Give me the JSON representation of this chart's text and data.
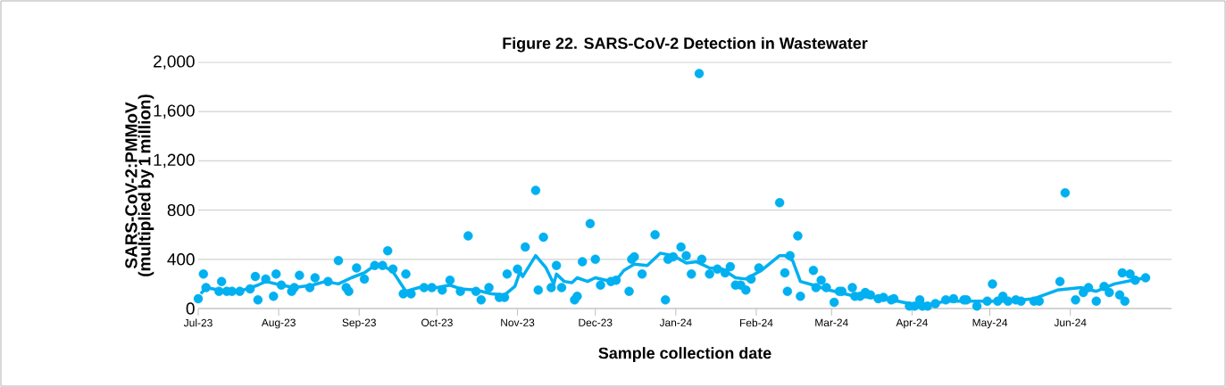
{
  "chart_data": {
    "type": "scatter",
    "title": "Figure 22. SARS-CoV-2 Detection in Wastewater",
    "xlabel": "Sample collection date",
    "ylabel": "SARS-CoV-2:PMMoV (multiplied by 1 million)",
    "xlim": [
      "2023-07-01",
      "2024-07-10"
    ],
    "ylim": [
      0,
      2000
    ],
    "xticks": [
      {
        "value": "2023-07-01",
        "label": "Jul-23"
      },
      {
        "value": "2023-08-01",
        "label": "Aug-23"
      },
      {
        "value": "2023-09-01",
        "label": "Sep-23"
      },
      {
        "value": "2023-10-01",
        "label": "Oct-23"
      },
      {
        "value": "2023-11-01",
        "label": "Nov-23"
      },
      {
        "value": "2023-12-01",
        "label": "Dec-23"
      },
      {
        "value": "2024-01-01",
        "label": "Jan-24"
      },
      {
        "value": "2024-02-01",
        "label": "Feb-24"
      },
      {
        "value": "2024-03-01",
        "label": "Mar-24"
      },
      {
        "value": "2024-04-01",
        "label": "Apr-24"
      },
      {
        "value": "2024-05-01",
        "label": "May-24"
      },
      {
        "value": "2024-06-01",
        "label": "Jun-24"
      }
    ],
    "yticks": [
      0,
      {
        "value": 400,
        "label": "400"
      },
      {
        "value": 800,
        "label": "800"
      },
      {
        "value": 1200,
        "label": "1,200"
      },
      {
        "value": 1600,
        "label": "1,600"
      },
      {
        "value": 2000,
        "label": "2,000"
      }
    ],
    "grid": "y",
    "series": [
      {
        "marker": "circle",
        "color": "#00b0f0",
        "x": [
          "2023-07-01",
          "2023-07-03",
          "2023-07-04",
          "2023-07-09",
          "2023-07-10",
          "2023-07-12",
          "2023-07-14",
          "2023-07-17",
          "2023-07-21",
          "2023-07-23",
          "2023-07-24",
          "2023-07-27",
          "2023-07-30",
          "2023-07-31",
          "2023-08-02",
          "2023-08-06",
          "2023-08-07",
          "2023-08-09",
          "2023-08-13",
          "2023-08-15",
          "2023-08-20",
          "2023-08-24",
          "2023-08-27",
          "2023-08-28",
          "2023-08-31",
          "2023-09-03",
          "2023-09-07",
          "2023-09-10",
          "2023-09-12",
          "2023-09-14",
          "2023-09-18",
          "2023-09-19",
          "2023-09-21",
          "2023-09-26",
          "2023-09-29",
          "2023-10-03",
          "2023-10-06",
          "2023-10-10",
          "2023-10-13",
          "2023-10-16",
          "2023-10-18",
          "2023-10-21",
          "2023-10-25",
          "2023-10-27",
          "2023-10-28",
          "2023-11-01",
          "2023-11-04",
          "2023-11-08",
          "2023-11-09",
          "2023-11-11",
          "2023-11-14",
          "2023-11-16",
          "2023-11-18",
          "2023-11-23",
          "2023-11-24",
          "2023-11-26",
          "2023-11-29",
          "2023-12-01",
          "2023-12-03",
          "2023-12-07",
          "2023-12-09",
          "2023-12-14",
          "2023-12-15",
          "2023-12-16",
          "2023-12-19",
          "2023-12-24",
          "2023-12-28",
          "2023-12-29",
          "2023-12-31",
          "2024-01-03",
          "2024-01-05",
          "2024-01-07",
          "2024-01-10",
          "2024-01-11",
          "2024-01-14",
          "2024-01-17",
          "2024-01-20",
          "2024-01-22",
          "2024-01-24",
          "2024-01-26",
          "2024-01-28",
          "2024-01-30",
          "2024-02-02",
          "2024-02-10",
          "2024-02-12",
          "2024-02-13",
          "2024-02-14",
          "2024-02-17",
          "2024-02-18",
          "2024-02-23",
          "2024-02-24",
          "2024-02-26",
          "2024-02-28",
          "2024-03-02",
          "2024-03-04",
          "2024-03-05",
          "2024-03-09",
          "2024-03-10",
          "2024-03-12",
          "2024-03-14",
          "2024-03-16",
          "2024-03-19",
          "2024-03-21",
          "2024-03-24",
          "2024-03-25",
          "2024-03-31",
          "2024-04-02",
          "2024-04-04",
          "2024-04-05",
          "2024-04-07",
          "2024-04-10",
          "2024-04-14",
          "2024-04-17",
          "2024-04-21",
          "2024-04-22",
          "2024-04-26",
          "2024-04-30",
          "2024-05-02",
          "2024-05-04",
          "2024-05-06",
          "2024-05-08",
          "2024-05-11",
          "2024-05-13",
          "2024-05-18",
          "2024-05-20",
          "2024-05-28",
          "2024-05-30",
          "2024-06-03",
          "2024-06-06",
          "2024-06-08",
          "2024-06-11",
          "2024-06-14",
          "2024-06-16",
          "2024-06-20",
          "2024-06-21",
          "2024-06-22",
          "2024-06-24",
          "2024-06-26",
          "2024-06-30"
        ],
        "values": [
          80,
          280,
          170,
          140,
          220,
          140,
          140,
          140,
          160,
          260,
          70,
          240,
          100,
          280,
          190,
          140,
          170,
          270,
          170,
          250,
          220,
          390,
          170,
          140,
          330,
          240,
          350,
          350,
          470,
          320,
          120,
          280,
          120,
          170,
          170,
          150,
          230,
          140,
          590,
          140,
          70,
          170,
          90,
          90,
          280,
          320,
          500,
          960,
          150,
          580,
          170,
          350,
          170,
          70,
          100,
          380,
          690,
          400,
          190,
          220,
          230,
          140,
          400,
          420,
          280,
          600,
          70,
          400,
          420,
          500,
          430,
          280,
          1910,
          400,
          280,
          320,
          290,
          340,
          190,
          190,
          150,
          240,
          330,
          860,
          290,
          140,
          430,
          590,
          100,
          310,
          170,
          230,
          170,
          50,
          140,
          140,
          170,
          100,
          100,
          130,
          110,
          80,
          90,
          70,
          80,
          20,
          20,
          70,
          20,
          20,
          40,
          70,
          80,
          70,
          70,
          20,
          60,
          200,
          60,
          100,
          60,
          70,
          60,
          60,
          60,
          220,
          940,
          70,
          130,
          170,
          60,
          180,
          130,
          110,
          290,
          60,
          280,
          230,
          250
        ]
      },
      {
        "type": "line",
        "marker": "none",
        "line_style": "solid",
        "color": "#00b0f0",
        "x": [
          "2023-07-02",
          "2023-07-04",
          "2023-07-09",
          "2023-07-17",
          "2023-07-24",
          "2023-07-27",
          "2023-08-02",
          "2023-08-07",
          "2023-08-14",
          "2023-08-19",
          "2023-08-24",
          "2023-08-29",
          "2023-09-03",
          "2023-09-07",
          "2023-09-10",
          "2023-09-14",
          "2023-09-19",
          "2023-09-24",
          "2023-10-01",
          "2023-10-06",
          "2023-10-10",
          "2023-10-16",
          "2023-10-22",
          "2023-10-27",
          "2023-10-31",
          "2023-11-02",
          "2023-11-03",
          "2023-11-08",
          "2023-11-12",
          "2023-11-15",
          "2023-11-16",
          "2023-11-19",
          "2023-11-22",
          "2023-11-24",
          "2023-11-28",
          "2023-12-01",
          "2023-12-05",
          "2023-12-09",
          "2023-12-12",
          "2023-12-16",
          "2023-12-21",
          "2023-12-26",
          "2023-12-31",
          "2024-01-05",
          "2024-01-09",
          "2024-01-14",
          "2024-01-19",
          "2024-01-24",
          "2024-01-28",
          "2024-02-03",
          "2024-02-10",
          "2024-02-12",
          "2024-02-15",
          "2024-02-18",
          "2024-02-23",
          "2024-02-29",
          "2024-03-04",
          "2024-03-10",
          "2024-03-17",
          "2024-03-24",
          "2024-03-31",
          "2024-04-07",
          "2024-04-14",
          "2024-04-21",
          "2024-04-28",
          "2024-05-08",
          "2024-05-18",
          "2024-05-27",
          "2024-06-05",
          "2024-06-11",
          "2024-06-18",
          "2024-06-25",
          "2024-06-30"
        ],
        "values": [
          120,
          170,
          150,
          140,
          190,
          220,
          190,
          170,
          190,
          220,
          200,
          250,
          290,
          350,
          350,
          300,
          140,
          170,
          170,
          190,
          160,
          150,
          120,
          110,
          180,
          300,
          260,
          430,
          330,
          200,
          280,
          220,
          210,
          250,
          220,
          250,
          230,
          230,
          310,
          360,
          350,
          450,
          430,
          370,
          380,
          330,
          320,
          250,
          240,
          310,
          430,
          430,
          390,
          220,
          190,
          150,
          130,
          100,
          90,
          70,
          40,
          30,
          60,
          60,
          60,
          60,
          80,
          150,
          170,
          140,
          200,
          230,
          250
        ]
      }
    ]
  }
}
